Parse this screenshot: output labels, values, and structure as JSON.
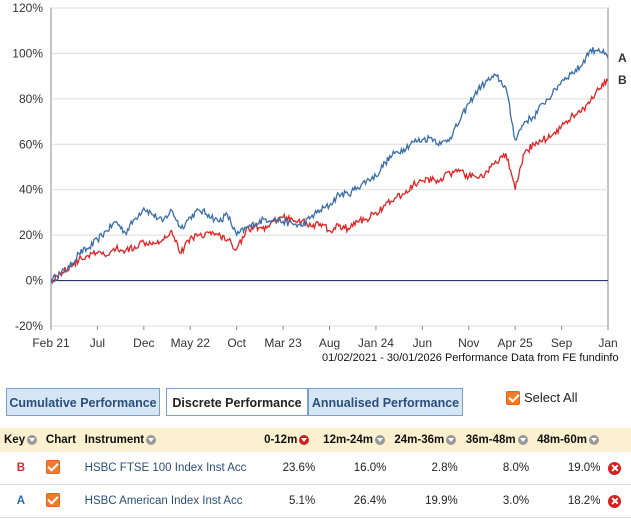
{
  "chart_data": {
    "type": "line",
    "title": "",
    "xlabel": "",
    "ylabel": "",
    "ylim": [
      -20,
      120
    ],
    "yticks": [
      "-20%",
      "0%",
      "20%",
      "40%",
      "60%",
      "80%",
      "100%",
      "120%"
    ],
    "ytick_values": [
      -20,
      0,
      20,
      40,
      60,
      80,
      100,
      120
    ],
    "xlim": [
      0,
      60
    ],
    "xticks": [
      "Feb 21",
      "Jul",
      "Dec",
      "May 22",
      "Oct",
      "Mar 23",
      "Aug",
      "Jan 24",
      "Jun",
      "Nov",
      "Apr 25",
      "Sep",
      "Jan"
    ],
    "xtick_values": [
      0,
      5,
      10,
      15,
      20,
      25,
      30,
      35,
      40,
      45,
      50,
      55,
      60
    ],
    "zero_line": 0,
    "caption": "01/02/2021 - 30/01/2026 Performance Data from FE fundinfo",
    "series": [
      {
        "name": "A",
        "label": "A",
        "color": "#3a6ea8",
        "x": [
          0,
          1,
          2,
          3,
          4,
          5,
          6,
          7,
          8,
          9,
          10,
          11,
          12,
          13,
          14,
          15,
          16,
          17,
          18,
          19,
          20,
          21,
          22,
          23,
          24,
          25,
          26,
          27,
          28,
          29,
          30,
          31,
          32,
          33,
          34,
          35,
          36,
          37,
          38,
          39,
          40,
          41,
          42,
          43,
          44,
          45,
          46,
          47,
          48,
          49,
          50,
          51,
          52,
          53,
          54,
          55,
          56,
          57,
          58,
          59,
          60
        ],
        "values": [
          0,
          3,
          6,
          12,
          14,
          18,
          22,
          26,
          21,
          27,
          32,
          29,
          26,
          31,
          23,
          28,
          31,
          29,
          26,
          29,
          20,
          23,
          25,
          27,
          27,
          26,
          25,
          24,
          28,
          31,
          33,
          38,
          38,
          41,
          44,
          46,
          52,
          56,
          58,
          61,
          62,
          63,
          60,
          63,
          70,
          78,
          84,
          88,
          90,
          85,
          62,
          70,
          72,
          78,
          82,
          88,
          91,
          94,
          101,
          102,
          98
        ]
      },
      {
        "name": "B",
        "label": "B",
        "color": "#e02424",
        "x": [
          0,
          1,
          2,
          3,
          4,
          5,
          6,
          7,
          8,
          9,
          10,
          11,
          12,
          13,
          14,
          15,
          16,
          17,
          18,
          19,
          20,
          21,
          22,
          23,
          24,
          25,
          26,
          27,
          28,
          29,
          30,
          31,
          32,
          33,
          34,
          35,
          36,
          37,
          38,
          39,
          40,
          41,
          42,
          43,
          44,
          45,
          46,
          47,
          48,
          49,
          50,
          51,
          52,
          53,
          54,
          55,
          56,
          57,
          58,
          59,
          60
        ],
        "values": [
          0,
          3,
          6,
          9,
          11,
          12,
          11,
          14,
          13,
          15,
          17,
          17,
          18,
          22,
          12,
          19,
          20,
          21,
          20,
          18,
          14,
          22,
          24,
          22,
          26,
          28,
          27,
          26,
          24,
          25,
          22,
          24,
          23,
          26,
          27,
          30,
          33,
          36,
          38,
          42,
          44,
          44,
          45,
          47,
          48,
          46,
          45,
          48,
          52,
          56,
          40,
          56,
          60,
          62,
          64,
          68,
          72,
          74,
          78,
          84,
          88
        ]
      }
    ]
  },
  "tabs": [
    {
      "label": "Cumulative Performance"
    },
    {
      "label": "Discrete Performance"
    },
    {
      "label": "Annualised Performance"
    }
  ],
  "select_all": {
    "label": "Select All"
  },
  "table": {
    "headers": {
      "key": "Key",
      "chart": "Chart",
      "instrument": "Instrument",
      "p1": "0-12m",
      "p2": "12m-24m",
      "p3": "24m-36m",
      "p4": "36m-48m",
      "p5": "48m-60m"
    },
    "rows": [
      {
        "key": "B",
        "instrument": "HSBC FTSE 100 Index Inst Acc",
        "p1": "23.6%",
        "p2": "16.0%",
        "p3": "2.8%",
        "p4": "8.0%",
        "p5": "19.0%"
      },
      {
        "key": "A",
        "instrument": "HSBC American Index Inst Acc",
        "p1": "5.1%",
        "p2": "26.4%",
        "p3": "19.9%",
        "p4": "3.0%",
        "p5": "18.2%"
      }
    ]
  }
}
